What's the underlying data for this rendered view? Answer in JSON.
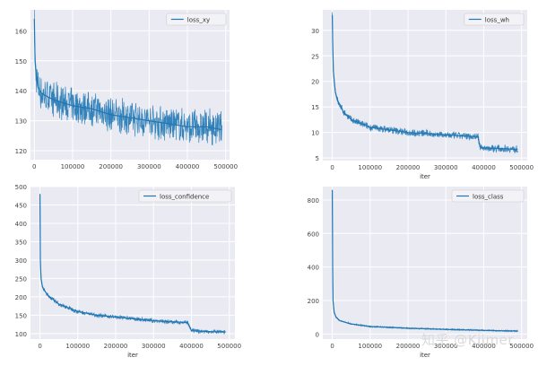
{
  "watermark": "知乎 @Kilmer",
  "colors": {
    "panel_bg": "#eaeaf2",
    "series": "#1f77b4",
    "legend_bg": "#f3f3f7",
    "legend_border": "#cccccc",
    "tick_text": "#444444"
  },
  "chart_data": [
    {
      "type": "line",
      "legend": "loss_xy",
      "legend_position": "top-right",
      "xlabel": "",
      "xlim": [
        -10000,
        510000
      ],
      "ylim": [
        117,
        167
      ],
      "xticks": [
        0,
        100000,
        200000,
        300000,
        400000,
        500000
      ],
      "yticks": [
        120,
        130,
        140,
        150,
        160
      ],
      "grid": true,
      "series": [
        {
          "name": "loss_xy",
          "x": [
            0,
            2000,
            5000,
            10000,
            20000,
            50000,
            100000,
            150000,
            200000,
            250000,
            300000,
            350000,
            400000,
            450000,
            490000
          ],
          "y": [
            164,
            150,
            145,
            141,
            139,
            137,
            135,
            134,
            132,
            131,
            130,
            129,
            128,
            128,
            127
          ],
          "noise": 4
        }
      ]
    },
    {
      "type": "line",
      "legend": "loss_wh",
      "legend_position": "top-right",
      "xlabel": "iter",
      "xlim": [
        -25000,
        515000
      ],
      "ylim": [
        4.5,
        34
      ],
      "xticks": [
        0,
        100000,
        200000,
        300000,
        400000,
        500000
      ],
      "yticks": [
        5,
        10,
        15,
        20,
        25,
        30
      ],
      "grid": true,
      "series": [
        {
          "name": "loss_wh",
          "x": [
            0,
            1000,
            3000,
            8000,
            15000,
            30000,
            50000,
            100000,
            150000,
            200000,
            250000,
            300000,
            350000,
            385000,
            390000,
            395000,
            420000,
            460000,
            490000
          ],
          "y": [
            33,
            28,
            22,
            18,
            16,
            14,
            12.5,
            11,
            10.5,
            10,
            9.8,
            9.5,
            9.3,
            9.2,
            7.2,
            7,
            6.9,
            6.8,
            6.7
          ],
          "noise": 0.5
        }
      ]
    },
    {
      "type": "line",
      "legend": "loss_confidence",
      "legend_position": "top-right",
      "xlabel": "iter",
      "xlim": [
        -25000,
        515000
      ],
      "ylim": [
        85,
        500
      ],
      "xticks": [
        0,
        100000,
        200000,
        300000,
        400000,
        500000
      ],
      "yticks": [
        100,
        150,
        200,
        250,
        300,
        350,
        400,
        450,
        500
      ],
      "grid": true,
      "series": [
        {
          "name": "loss_confidence",
          "x": [
            0,
            1000,
            3000,
            6000,
            10000,
            20000,
            50000,
            100000,
            150000,
            200000,
            250000,
            300000,
            350000,
            390000,
            400000,
            430000,
            460000,
            490000
          ],
          "y": [
            480,
            300,
            250,
            230,
            220,
            205,
            180,
            160,
            150,
            145,
            140,
            135,
            132,
            130,
            108,
            106,
            105,
            104
          ],
          "noise": 4
        }
      ]
    },
    {
      "type": "line",
      "legend": "loss_class",
      "legend_position": "top-right",
      "xlabel": "iter",
      "xlim": [
        -25000,
        515000
      ],
      "ylim": [
        -30,
        880
      ],
      "xticks": [
        0,
        100000,
        200000,
        300000,
        400000,
        500000
      ],
      "yticks": [
        0,
        200,
        400,
        600,
        800
      ],
      "grid": true,
      "series": [
        {
          "name": "loss_class",
          "x": [
            0,
            1000,
            2000,
            5000,
            10000,
            20000,
            50000,
            100000,
            150000,
            200000,
            300000,
            400000,
            490000
          ],
          "y": [
            860,
            400,
            200,
            130,
            100,
            80,
            60,
            45,
            40,
            35,
            28,
            22,
            18
          ],
          "noise": 3
        }
      ]
    }
  ]
}
